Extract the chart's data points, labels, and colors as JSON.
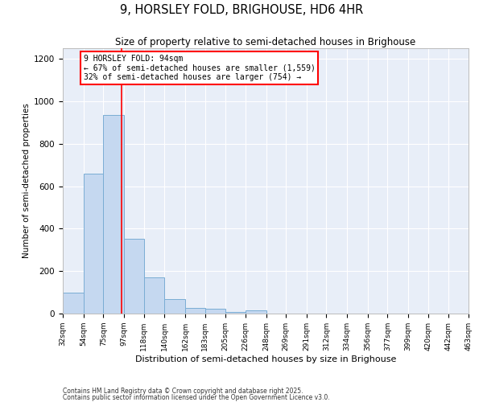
{
  "title": "9, HORSLEY FOLD, BRIGHOUSE, HD6 4HR",
  "subtitle": "Size of property relative to semi-detached houses in Brighouse",
  "xlabel": "Distribution of semi-detached houses by size in Brighouse",
  "ylabel": "Number of semi-detached properties",
  "bar_color": "#c5d8f0",
  "bar_edge_color": "#7aadd4",
  "background_color": "#e8eef8",
  "grid_color": "#ffffff",
  "vline_x": 94,
  "vline_color": "red",
  "annotation_title": "9 HORSLEY FOLD: 94sqm",
  "annotation_line1": "← 67% of semi-detached houses are smaller (1,559)",
  "annotation_line2": "32% of semi-detached houses are larger (754) →",
  "footer1": "Contains HM Land Registry data © Crown copyright and database right 2025.",
  "footer2": "Contains public sector information licensed under the Open Government Licence v3.0.",
  "bin_edges": [
    32,
    54,
    75,
    97,
    118,
    140,
    162,
    183,
    205,
    226,
    248,
    269,
    291,
    312,
    334,
    356,
    377,
    399,
    420,
    442,
    463
  ],
  "bin_counts": [
    100,
    659,
    934,
    352,
    170,
    70,
    28,
    22,
    8,
    15,
    0,
    0,
    0,
    0,
    0,
    0,
    0,
    0,
    0,
    0
  ],
  "ylim": [
    0,
    1250
  ],
  "yticks": [
    0,
    200,
    400,
    600,
    800,
    1000,
    1200
  ],
  "tick_labels": [
    "32sqm",
    "54sqm",
    "75sqm",
    "97sqm",
    "118sqm",
    "140sqm",
    "162sqm",
    "183sqm",
    "205sqm",
    "226sqm",
    "248sqm",
    "269sqm",
    "291sqm",
    "312sqm",
    "334sqm",
    "356sqm",
    "377sqm",
    "399sqm",
    "420sqm",
    "442sqm",
    "463sqm"
  ]
}
